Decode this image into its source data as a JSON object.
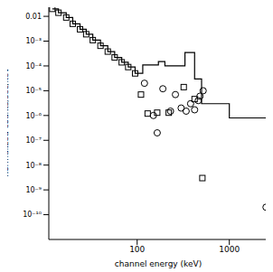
{
  "chart_data": {
    "type": "scatter",
    "x_label": "channel energy (keV)",
    "y_label": "normalized counts/sec/keV",
    "log": true,
    "xlim": [
      11,
      2600
    ],
    "ylim": [
      1e-11,
      0.03
    ],
    "xticks": [
      100,
      1000
    ],
    "yticks": [
      0.01,
      {
        "value": 0.001,
        "label": "10⁻³"
      },
      {
        "value": 0.0001,
        "label": "10⁻⁴"
      },
      {
        "value": 1e-05,
        "label": "10⁻⁵"
      },
      {
        "value": 1e-06,
        "label": "10⁻⁶"
      },
      {
        "value": 1e-07,
        "label": "10⁻⁷"
      },
      {
        "value": 1e-08,
        "label": "10⁻⁸"
      },
      {
        "value": 1e-09,
        "label": "10⁻⁹"
      },
      {
        "value": 1e-10,
        "label": "10⁻¹⁰"
      }
    ],
    "color": "#000000",
    "series": [
      {
        "type": "scatter",
        "marker": "square",
        "x": [
          12,
          14,
          17,
          20,
          24,
          28,
          33,
          40,
          48,
          57,
          68,
          80,
          95,
          110,
          130,
          165,
          220,
          320,
          420,
          510
        ],
        "values": [
          0.02,
          0.014,
          0.009,
          0.005,
          0.003,
          0.0019,
          0.0011,
          0.00065,
          0.00038,
          0.00022,
          0.00014,
          9e-05,
          5e-05,
          7e-06,
          1.2e-06,
          1.3e-06,
          1.3e-06,
          1.4e-05,
          4.6e-06,
          3e-09
        ]
      },
      {
        "type": "scatter",
        "marker": "circle",
        "x": [
          120,
          150,
          165,
          190,
          230,
          260,
          300,
          340,
          380,
          420,
          460,
          480,
          520,
          2500
        ],
        "values": [
          2e-05,
          1e-06,
          2e-07,
          1.2e-05,
          1.5e-06,
          7e-06,
          2e-06,
          1.5e-06,
          3e-06,
          1.7e-06,
          4e-06,
          6e-06,
          1e-05,
          2e-10
        ]
      },
      {
        "type": "line",
        "line_style": "step",
        "x": [
          12,
          14,
          17,
          20,
          24,
          28,
          33,
          40,
          48,
          57,
          68,
          80,
          95,
          115,
          140,
          170,
          200,
          250,
          330,
          420,
          500,
          1000,
          2600
        ],
        "values": [
          0.02,
          0.014,
          0.009,
          0.005,
          0.003,
          0.0019,
          0.0011,
          0.00065,
          0.00038,
          0.00022,
          0.00014,
          9e-05,
          5e-05,
          0.00011,
          0.00011,
          0.00015,
          0.0001,
          0.0001,
          0.00035,
          3e-05,
          3e-06,
          8e-07,
          8e-07
        ]
      }
    ]
  }
}
